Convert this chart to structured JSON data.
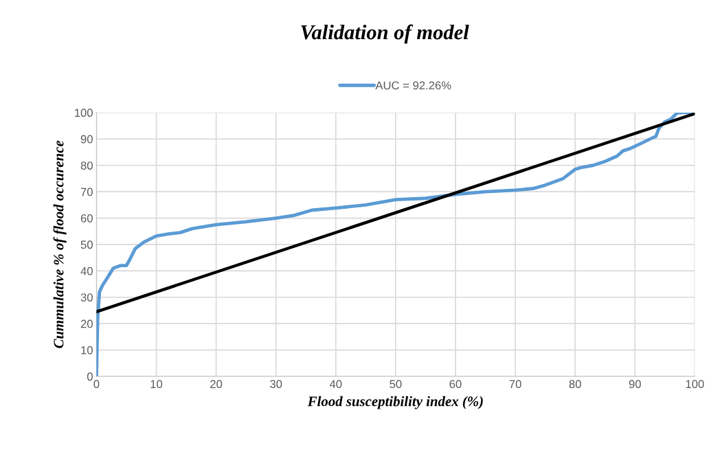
{
  "chart_data": {
    "type": "line",
    "title": "Validation of model",
    "xlabel": "Flood susceptibility index (%)",
    "ylabel": "Cummulative % of flood occurence",
    "series": [
      {
        "name": "AUC = 92.26%",
        "color": "#5b9bd5",
        "x": [
          0,
          0.2,
          0.5,
          1,
          2,
          2.8,
          4,
          5,
          5.5,
          6.5,
          8,
          10,
          12,
          14,
          16,
          20,
          25,
          30,
          33,
          36,
          40,
          45,
          50,
          55,
          60,
          65,
          70,
          73,
          75,
          78,
          80,
          81,
          83,
          85,
          87,
          88,
          89,
          91,
          93,
          93.5,
          94,
          95,
          96,
          97,
          98,
          100
        ],
        "values": [
          0,
          22,
          32,
          34.5,
          38,
          41,
          42,
          42,
          44,
          48.5,
          51,
          53.2,
          54,
          54.5,
          56,
          57.5,
          58.6,
          60,
          61,
          63,
          63.8,
          65,
          67,
          67.5,
          69,
          70,
          70.6,
          71.2,
          72.5,
          75,
          78.5,
          79.2,
          80,
          81.5,
          83.5,
          85.5,
          86.2,
          88.3,
          90.5,
          91,
          94,
          96.5,
          97.5,
          99.8,
          100,
          100
        ]
      },
      {
        "color": "#000000",
        "x": [
          0,
          100
        ],
        "values": [
          24.5,
          99.6
        ]
      }
    ],
    "xlim": [
      0,
      100
    ],
    "xticks": [
      0,
      10,
      20,
      30,
      40,
      50,
      60,
      70,
      80,
      90,
      100
    ],
    "ylim": [
      0,
      100
    ],
    "yticks": [
      0,
      10,
      20,
      30,
      40,
      50,
      60,
      70,
      80,
      90,
      100
    ],
    "grid": true,
    "legend": "top",
    "marker": "none",
    "line_style": "solid"
  }
}
